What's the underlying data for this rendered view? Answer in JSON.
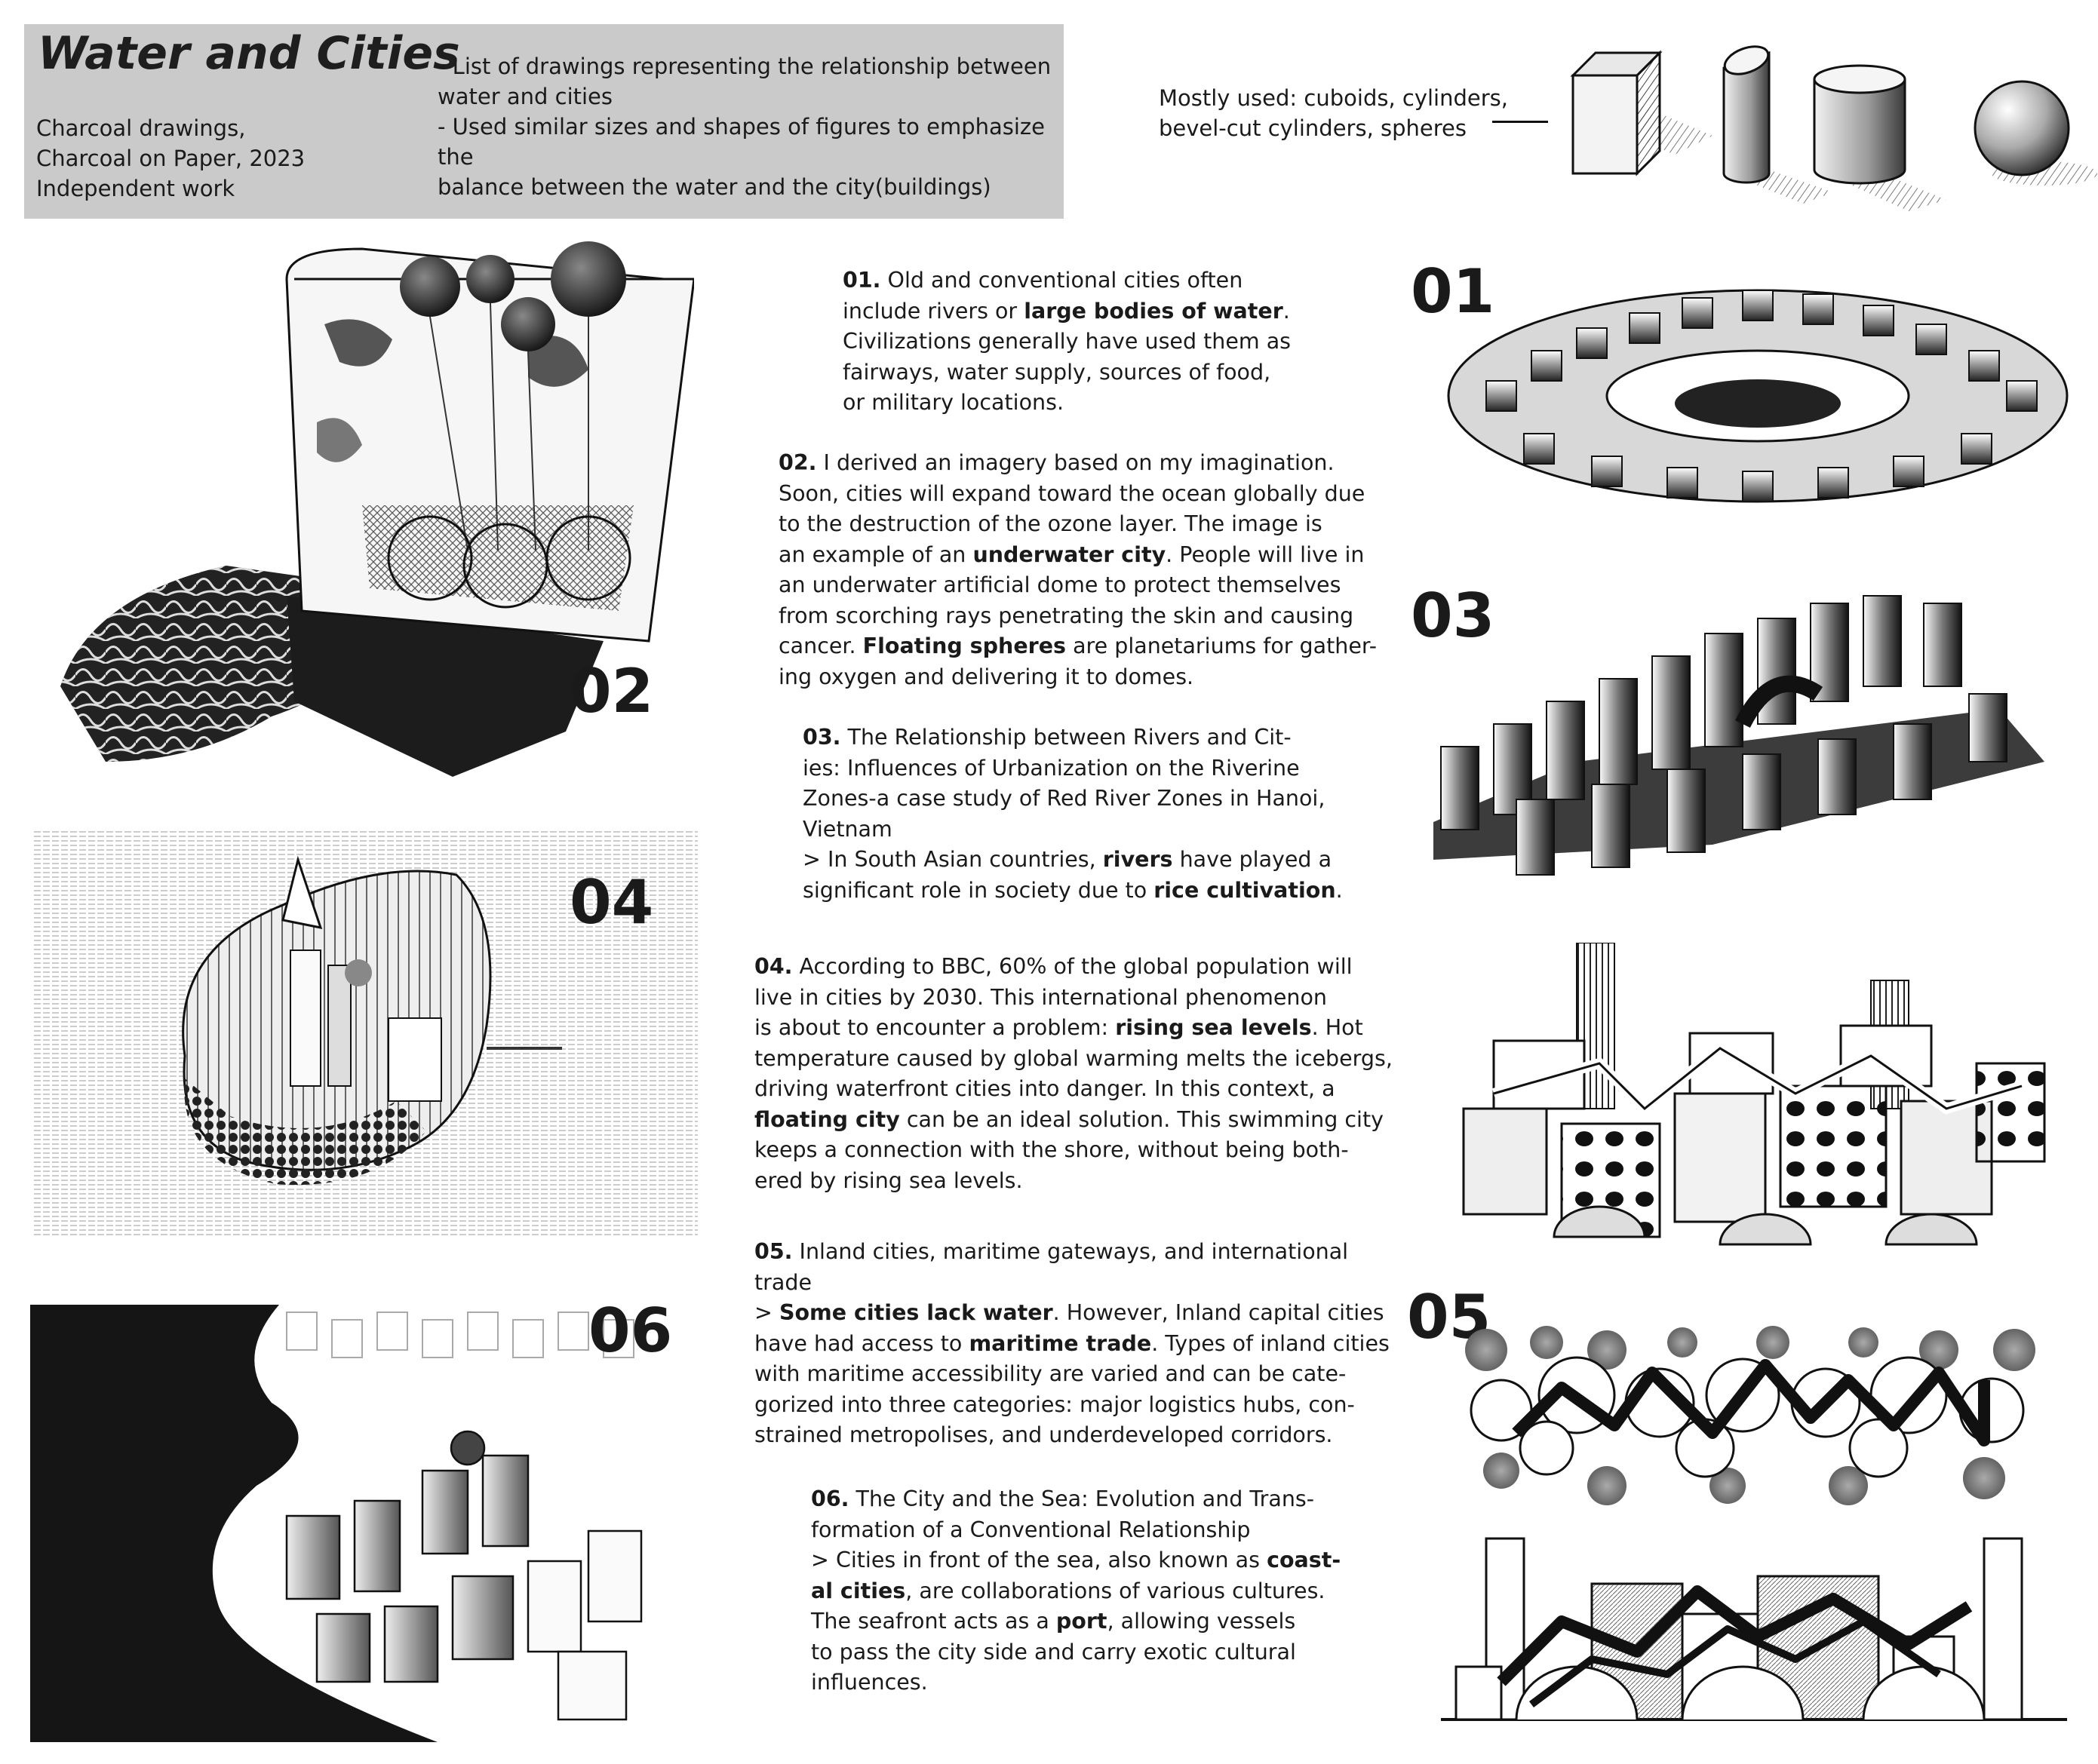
{
  "header": {
    "title": "Water and Cities",
    "meta_lines": [
      "Charcoal drawings,",
      "Charcoal on Paper, 2023",
      "Independent work"
    ],
    "list_lines": [
      "- List of drawings representing the relationship between",
      "water and cities",
      "- Used similar sizes and shapes of figures to emphasize the",
      "balance between the water and the city(buildings)"
    ]
  },
  "shapes_note": {
    "lines": [
      "Mostly used: cuboids, cylinders,",
      "bevel-cut cylinders, spheres"
    ],
    "icons": [
      "cuboid",
      "bevel-cut-cylinder",
      "cylinder",
      "sphere"
    ]
  },
  "labels": {
    "n01": "01",
    "n02": "02",
    "n03": "03",
    "n04": "04",
    "n05": "05",
    "n06": "06"
  },
  "paragraphs": {
    "p01": [
      [
        {
          "b": "01."
        },
        {
          "t": " Old and conventional cities often"
        }
      ],
      [
        {
          "t": "include rivers or "
        },
        {
          "b": "large bodies of water"
        },
        {
          "t": "."
        }
      ],
      [
        {
          "t": "Civilizations generally have used them as"
        }
      ],
      [
        {
          "t": "fairways, water supply, sources of food,"
        }
      ],
      [
        {
          "t": "or military locations."
        }
      ]
    ],
    "p02": [
      [
        {
          "b": "02."
        },
        {
          "t": " I derived an imagery based on my imagination."
        }
      ],
      [
        {
          "t": "Soon, cities will expand toward the ocean globally due"
        }
      ],
      [
        {
          "t": "to the destruction of the ozone layer. The image is"
        }
      ],
      [
        {
          "t": "an example of an "
        },
        {
          "b": "underwater city"
        },
        {
          "t": ". People will live in"
        }
      ],
      [
        {
          "t": "an underwater artificial dome to protect themselves"
        }
      ],
      [
        {
          "t": "from scorching rays penetrating the skin and causing"
        }
      ],
      [
        {
          "t": "cancer. "
        },
        {
          "b": "Floating spheres"
        },
        {
          "t": " are planetariums for gather-"
        }
      ],
      [
        {
          "t": "ing oxygen and delivering it to domes."
        }
      ]
    ],
    "p03": [
      [
        {
          "b": "03."
        },
        {
          "t": " The Relationship between Rivers and Cit-"
        }
      ],
      [
        {
          "t": "ies: Influences of Urbanization on the Riverine"
        }
      ],
      [
        {
          "t": "Zones-a case study of Red River Zones in Hanoi,"
        }
      ],
      [
        {
          "t": "Vietnam"
        }
      ],
      [
        {
          "t": "> In South Asian countries, "
        },
        {
          "b": "rivers"
        },
        {
          "t": " have played a"
        }
      ],
      [
        {
          "t": "significant role in society due to "
        },
        {
          "b": "rice cultivation"
        },
        {
          "t": "."
        }
      ]
    ],
    "p04": [
      [
        {
          "b": "04."
        },
        {
          "t": " According to BBC, 60% of the global population will"
        }
      ],
      [
        {
          "t": "live in cities by 2030. This international phenomenon"
        }
      ],
      [
        {
          "t": "is about to encounter a problem: "
        },
        {
          "b": "rising sea levels"
        },
        {
          "t": ". Hot"
        }
      ],
      [
        {
          "t": "temperature caused by global warming melts the icebergs,"
        }
      ],
      [
        {
          "t": "driving waterfront cities into danger. In this context, a"
        }
      ],
      [
        {
          "b": "floating city"
        },
        {
          "t": " can be an ideal solution. This swimming city"
        }
      ],
      [
        {
          "t": "keeps a connection with the shore, without being both-"
        }
      ],
      [
        {
          "t": "ered by rising sea levels."
        }
      ]
    ],
    "p05": [
      [
        {
          "b": "05."
        },
        {
          "t": " Inland cities, maritime gateways, and international"
        }
      ],
      [
        {
          "t": "trade"
        }
      ],
      [
        {
          "t": "> "
        },
        {
          "b": "Some cities lack water"
        },
        {
          "t": ". However, Inland capital cities"
        }
      ],
      [
        {
          "t": "have had access to "
        },
        {
          "b": "maritime trade"
        },
        {
          "t": ". Types of inland cities"
        }
      ],
      [
        {
          "t": "with maritime accessibility are varied and can be cate-"
        }
      ],
      [
        {
          "t": "gorized into three categories: major logistics hubs, con-"
        }
      ],
      [
        {
          "t": "strained metropolises, and underdeveloped corridors."
        }
      ]
    ],
    "p06": [
      [
        {
          "b": "06."
        },
        {
          "t": " The City and the Sea: Evolution and Trans-"
        }
      ],
      [
        {
          "t": "formation of a Conventional Relationship"
        }
      ],
      [
        {
          "t": "> Cities in front of the sea, also known as "
        },
        {
          "b": "coast-"
        }
      ],
      [
        {
          "b": "al cities"
        },
        {
          "t": ", are collaborations of various cultures."
        }
      ],
      [
        {
          "t": "The seafront acts as a "
        },
        {
          "b": "port"
        },
        {
          "t": ", allowing vessels"
        }
      ],
      [
        {
          "t": "to pass the city side and carry exotic cultural"
        }
      ],
      [
        {
          "t": "influences."
        }
      ]
    ]
  },
  "colors": {
    "header_bg": "#c9cac9",
    "ink": "#1a1a1a"
  }
}
